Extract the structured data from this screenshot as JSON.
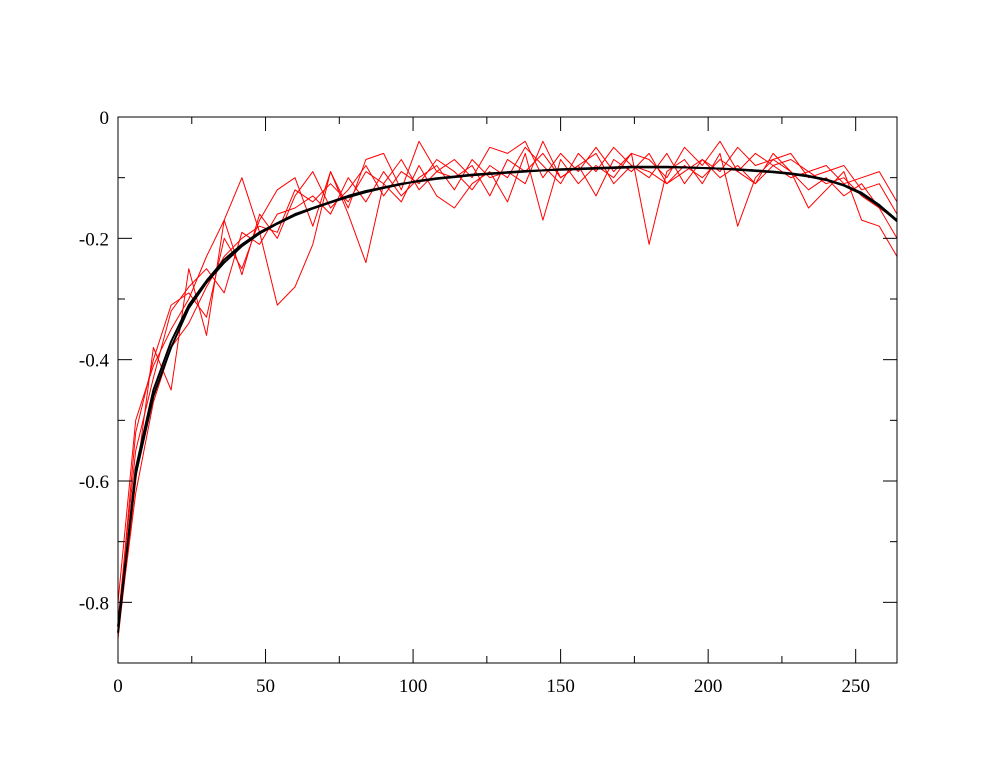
{
  "chart_data": {
    "type": "line",
    "title": "",
    "xlabel": "",
    "ylabel": "",
    "xlim": [
      0,
      264
    ],
    "ylim": [
      -0.9,
      0
    ],
    "x_ticks": [
      0,
      50,
      100,
      150,
      200,
      250
    ],
    "x_tick_labels": [
      "0",
      "50",
      "100",
      "150",
      "200",
      "250"
    ],
    "x_minor_step": 25,
    "y_ticks": [
      0,
      -0.2,
      -0.4,
      -0.6,
      -0.8
    ],
    "y_tick_labels": [
      "0",
      "-0.2",
      "-0.4",
      "-0.6",
      "-0.8"
    ],
    "y_minor_step": 0.1,
    "grid": false,
    "colors": {
      "noisy": "#ff0000",
      "smooth": "#000000",
      "frame": "#000000"
    },
    "x": [
      0,
      6,
      12,
      18,
      24,
      30,
      36,
      42,
      48,
      54,
      60,
      66,
      72,
      78,
      84,
      90,
      96,
      102,
      108,
      114,
      120,
      126,
      132,
      138,
      144,
      150,
      156,
      162,
      168,
      174,
      180,
      186,
      192,
      198,
      204,
      210,
      216,
      222,
      228,
      234,
      240,
      246,
      252,
      258,
      264
    ],
    "series": [
      {
        "color": "#ff0000",
        "values": [
          -0.84,
          -0.52,
          -0.4,
          -0.31,
          -0.29,
          -0.33,
          -0.2,
          -0.25,
          -0.17,
          -0.12,
          -0.1,
          -0.18,
          -0.09,
          -0.15,
          -0.07,
          -0.06,
          -0.12,
          -0.04,
          -0.09,
          -0.07,
          -0.1,
          -0.05,
          -0.06,
          -0.04,
          -0.1,
          -0.06,
          -0.09,
          -0.05,
          -0.09,
          -0.06,
          -0.07,
          -0.1,
          -0.05,
          -0.08,
          -0.04,
          -0.09,
          -0.06,
          -0.08,
          -0.07,
          -0.09,
          -0.08,
          -0.11,
          -0.1,
          -0.09,
          -0.14
        ]
      },
      {
        "color": "#ff0000",
        "values": [
          -0.86,
          -0.6,
          -0.38,
          -0.45,
          -0.25,
          -0.36,
          -0.17,
          -0.1,
          -0.19,
          -0.31,
          -0.28,
          -0.21,
          -0.09,
          -0.16,
          -0.24,
          -0.11,
          -0.14,
          -0.08,
          -0.13,
          -0.15,
          -0.11,
          -0.09,
          -0.14,
          -0.06,
          -0.17,
          -0.07,
          -0.11,
          -0.08,
          -0.1,
          -0.06,
          -0.21,
          -0.09,
          -0.07,
          -0.11,
          -0.06,
          -0.18,
          -0.1,
          -0.07,
          -0.09,
          -0.15,
          -0.12,
          -0.09,
          -0.17,
          -0.18,
          -0.23
        ]
      },
      {
        "color": "#ff0000",
        "values": [
          -0.8,
          -0.5,
          -0.41,
          -0.35,
          -0.3,
          -0.23,
          -0.17,
          -0.26,
          -0.16,
          -0.2,
          -0.13,
          -0.09,
          -0.15,
          -0.12,
          -0.08,
          -0.13,
          -0.09,
          -0.11,
          -0.07,
          -0.09,
          -0.12,
          -0.08,
          -0.1,
          -0.05,
          -0.08,
          -0.11,
          -0.06,
          -0.09,
          -0.05,
          -0.08,
          -0.1,
          -0.06,
          -0.11,
          -0.07,
          -0.09,
          -0.05,
          -0.08,
          -0.07,
          -0.06,
          -0.1,
          -0.09,
          -0.08,
          -0.12,
          -0.11,
          -0.16
        ]
      },
      {
        "color": "#ff0000",
        "values": [
          -0.83,
          -0.55,
          -0.43,
          -0.32,
          -0.28,
          -0.25,
          -0.29,
          -0.19,
          -0.21,
          -0.16,
          -0.15,
          -0.13,
          -0.16,
          -0.1,
          -0.14,
          -0.09,
          -0.13,
          -0.1,
          -0.08,
          -0.12,
          -0.07,
          -0.1,
          -0.09,
          -0.11,
          -0.04,
          -0.1,
          -0.08,
          -0.13,
          -0.07,
          -0.09,
          -0.06,
          -0.11,
          -0.09,
          -0.07,
          -0.1,
          -0.08,
          -0.11,
          -0.06,
          -0.09,
          -0.12,
          -0.1,
          -0.13,
          -0.11,
          -0.15,
          -0.2
        ]
      },
      {
        "color": "#ff0000",
        "values": [
          -0.85,
          -0.62,
          -0.47,
          -0.38,
          -0.34,
          -0.28,
          -0.23,
          -0.2,
          -0.18,
          -0.19,
          -0.12,
          -0.14,
          -0.11,
          -0.14,
          -0.09,
          -0.11,
          -0.07,
          -0.12,
          -0.09,
          -0.1,
          -0.08,
          -0.13,
          -0.07,
          -0.09,
          -0.06,
          -0.1,
          -0.08,
          -0.06,
          -0.11,
          -0.08,
          -0.09,
          -0.11,
          -0.08,
          -0.1,
          -0.07,
          -0.09,
          -0.11,
          -0.08,
          -0.1,
          -0.09,
          -0.11,
          -0.1,
          -0.13,
          -0.15,
          -0.17
        ]
      },
      {
        "color": "#000000",
        "values": [
          -0.85,
          -0.58,
          -0.45,
          -0.37,
          -0.31,
          -0.27,
          -0.235,
          -0.21,
          -0.19,
          -0.175,
          -0.16,
          -0.15,
          -0.14,
          -0.13,
          -0.122,
          -0.116,
          -0.11,
          -0.106,
          -0.102,
          -0.099,
          -0.096,
          -0.094,
          -0.092,
          -0.09,
          -0.088,
          -0.087,
          -0.086,
          -0.085,
          -0.084,
          -0.083,
          -0.083,
          -0.083,
          -0.083,
          -0.084,
          -0.085,
          -0.086,
          -0.088,
          -0.09,
          -0.093,
          -0.097,
          -0.103,
          -0.112,
          -0.125,
          -0.145,
          -0.17
        ]
      },
      {
        "color": "#000000",
        "values": [
          -0.84,
          -0.59,
          -0.46,
          -0.38,
          -0.315,
          -0.273,
          -0.24,
          -0.213,
          -0.192,
          -0.176,
          -0.162,
          -0.151,
          -0.141,
          -0.132,
          -0.124,
          -0.117,
          -0.111,
          -0.105,
          -0.101,
          -0.098,
          -0.095,
          -0.093,
          -0.091,
          -0.089,
          -0.088,
          -0.086,
          -0.085,
          -0.084,
          -0.083,
          -0.082,
          -0.082,
          -0.082,
          -0.083,
          -0.084,
          -0.085,
          -0.087,
          -0.089,
          -0.091,
          -0.094,
          -0.098,
          -0.104,
          -0.113,
          -0.127,
          -0.147,
          -0.172
        ]
      }
    ]
  }
}
